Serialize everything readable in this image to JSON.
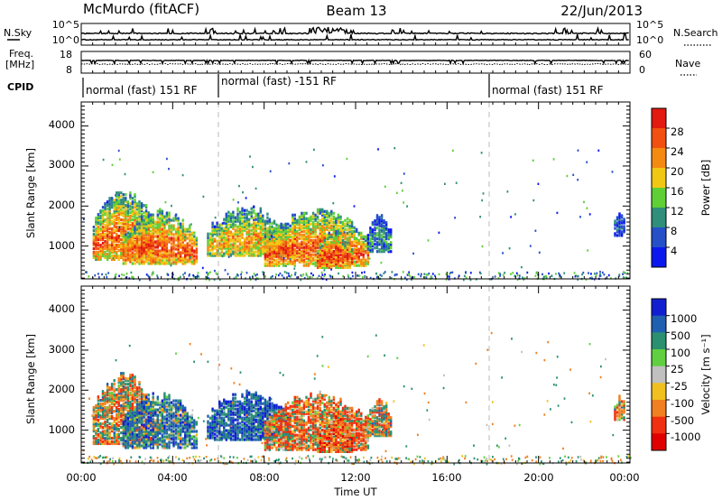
{
  "header": {
    "radar": "McMurdo (fitACF)",
    "beam": "Beam 13",
    "date": "22/Jun/2013"
  },
  "noise_panel": {
    "left_label": "N.Sky",
    "right_label": "N.Search",
    "left_ticks": [
      "10^5",
      "10^0"
    ],
    "right_ticks": [
      "10^5",
      "10^0"
    ]
  },
  "freq_panel": {
    "left_label_1": "Freq.",
    "left_label_2": "[MHz]",
    "right_label": "Nave",
    "left_ticks": [
      "18",
      "8"
    ],
    "right_ticks": [
      "60",
      "0"
    ]
  },
  "cpid": {
    "label": "CPID",
    "segments": [
      {
        "start_h": 0.0,
        "end_h": 6.0,
        "text": "normal (fast) 151 RF"
      },
      {
        "start_h": 6.0,
        "end_h": 18.0,
        "text": "normal (fast) -151 RF"
      },
      {
        "start_h": 18.0,
        "end_h": 24.0,
        "text": "normal (fast) 151 RF"
      }
    ]
  },
  "x_axis": {
    "label": "Time UT",
    "range_h": [
      0,
      24
    ],
    "ticks": [
      "00:00",
      "04:00",
      "08:00",
      "12:00",
      "16:00",
      "20:00",
      "00:00"
    ]
  },
  "y_axis": {
    "label": "Slant Range [km]",
    "range_km": [
      180,
      4600
    ],
    "ticks": [
      "1000",
      "2000",
      "3000",
      "4000"
    ]
  },
  "power_colorbar": {
    "label": "Power [dB]",
    "ticks": [
      "4",
      "8",
      "12",
      "16",
      "20",
      "24",
      "28"
    ],
    "colors": [
      "#0a18ee",
      "#2650c8",
      "#2f8f7a",
      "#5fcf36",
      "#f0c814",
      "#f58a10",
      "#f25010",
      "#e21a10"
    ]
  },
  "velocity_colorbar": {
    "label": "Velocity [m s⁻¹]",
    "ticks": [
      "1000",
      "500",
      "100",
      "25",
      "-25",
      "-100",
      "-500",
      "-1000"
    ],
    "colors": [
      "#1020d0",
      "#2060b0",
      "#2a9070",
      "#60d040",
      "#c0c0c0",
      "#f0c020",
      "#f08020",
      "#f03010",
      "#e00000"
    ]
  },
  "chart_data": {
    "type": "heatmap",
    "title": "McMurdo (fitACF)",
    "xlabel": "Time UT",
    "ylabel": "Slant Range [km]",
    "xlim_h": [
      0,
      24
    ],
    "ylim_km": [
      180,
      4600
    ],
    "dashed_time_markers_h": [
      6,
      18
    ],
    "panels": [
      "Power [dB]",
      "Velocity [m s⁻¹]"
    ],
    "echo_regions": [
      {
        "t0": 0.5,
        "t1": 3.2,
        "r0": 700,
        "r1": 2400,
        "power_db": 26,
        "velocity": -100
      },
      {
        "t0": 1.8,
        "t1": 5.0,
        "r0": 600,
        "r1": 1900,
        "power_db": 28,
        "velocity": 500
      },
      {
        "t0": 5.5,
        "t1": 9.0,
        "r0": 800,
        "r1": 1950,
        "power_db": 22,
        "velocity": 800
      },
      {
        "t0": 8.0,
        "t1": 12.5,
        "r0": 550,
        "r1": 1900,
        "power_db": 27,
        "velocity": -300
      },
      {
        "t0": 10.3,
        "t1": 11.8,
        "r0": 500,
        "r1": 1400,
        "power_db": 30,
        "velocity": -500
      },
      {
        "t0": 12.5,
        "t1": 13.5,
        "r0": 900,
        "r1": 1800,
        "power_db": 10,
        "velocity": -100
      },
      {
        "t0": 23.3,
        "t1": 23.8,
        "r0": 1300,
        "r1": 1850,
        "power_db": 6,
        "velocity": -60
      }
    ]
  }
}
